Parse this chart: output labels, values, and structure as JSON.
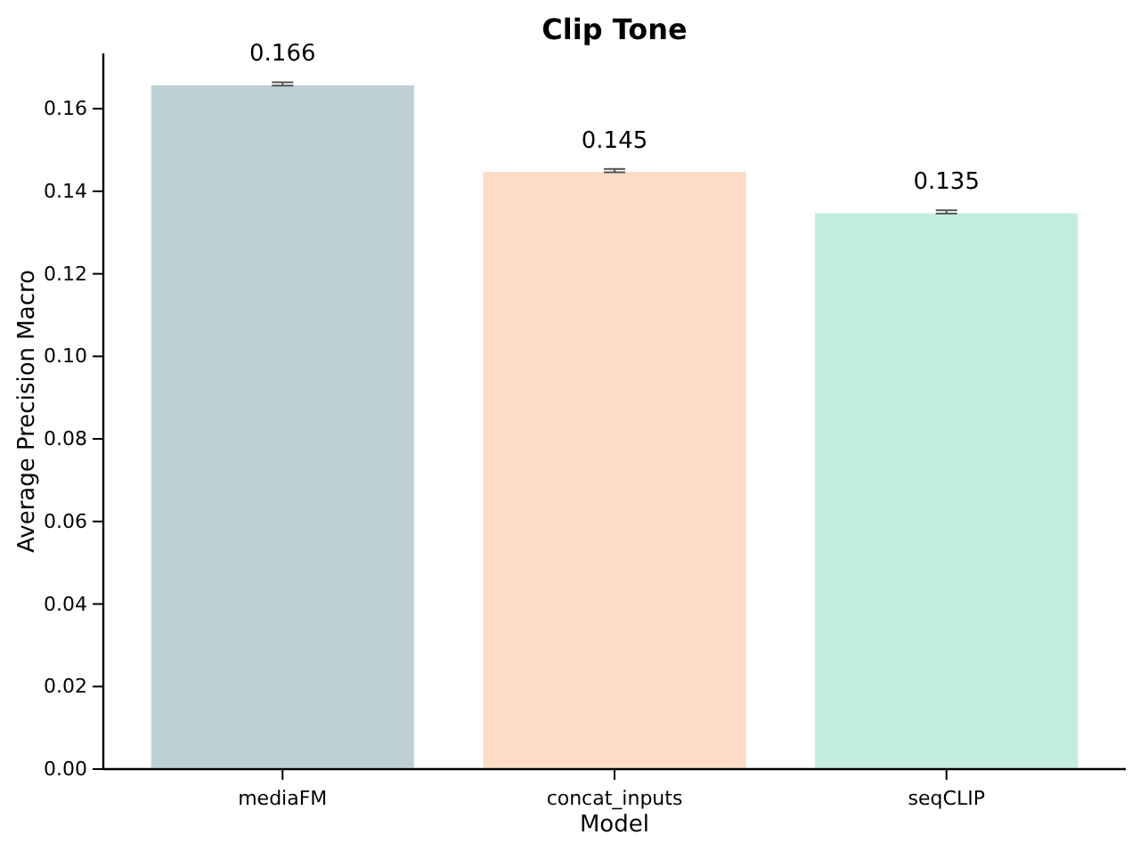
{
  "chart_data": {
    "type": "bar",
    "title": "Clip Tone",
    "xlabel": "Model",
    "ylabel": "Average Precision Macro",
    "categories": [
      "mediaFM",
      "concat_inputs",
      "seqCLIP"
    ],
    "values": [
      0.166,
      0.145,
      0.135
    ],
    "colors": [
      "#bcd0d6",
      "#fddbc5",
      "#c3ede0"
    ],
    "errors": [
      0.0004,
      0.0004,
      0.0004
    ],
    "data_labels": true,
    "ylim": [
      0,
      0.1734
    ],
    "yticks": [
      {
        "value": 0,
        "label": "0.00"
      },
      {
        "value": 0.02,
        "label": "0.02"
      },
      {
        "value": 0.04,
        "label": "0.04"
      },
      {
        "value": 0.06,
        "label": "0.06"
      },
      {
        "value": 0.08,
        "label": "0.08"
      },
      {
        "value": 0.1,
        "label": "0.10"
      },
      {
        "value": 0.12,
        "label": "0.12"
      },
      {
        "value": 0.14,
        "label": "0.14"
      },
      {
        "value": 0.16,
        "label": "0.16"
      }
    ]
  }
}
